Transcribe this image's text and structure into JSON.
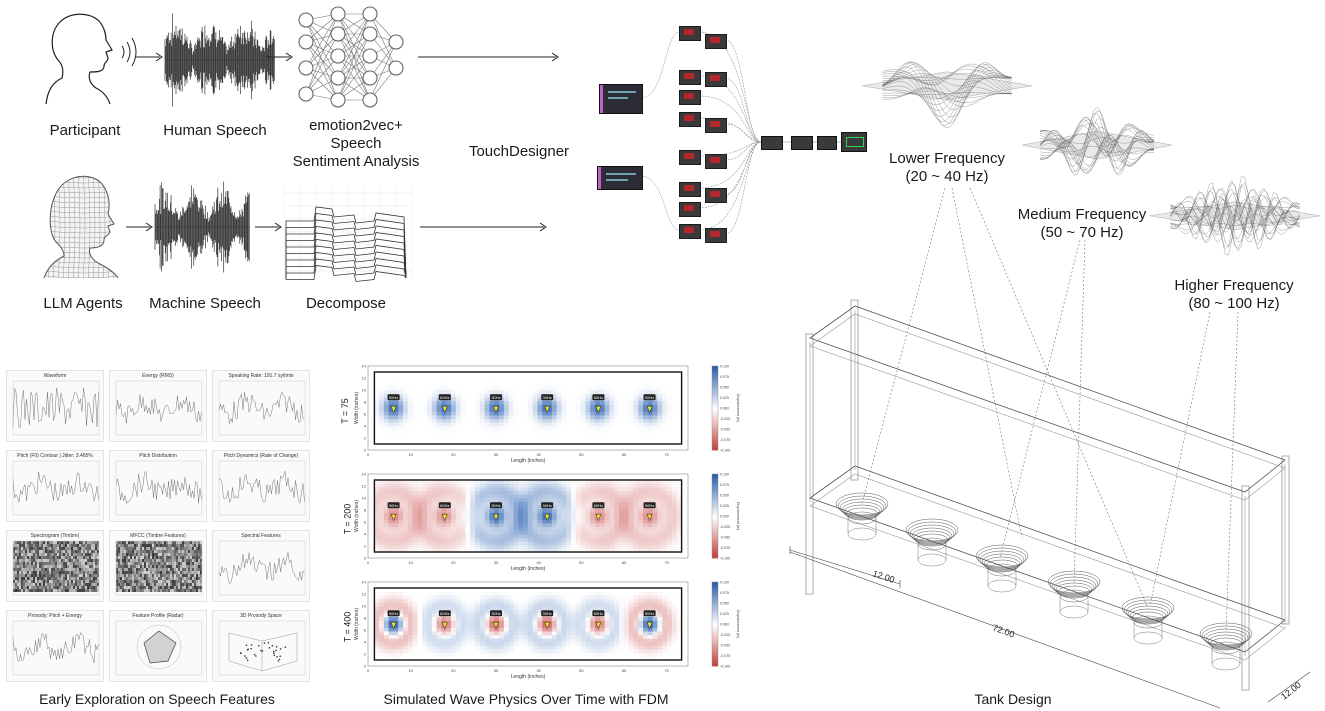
{
  "pipeline": {
    "participant": "Participant",
    "human_speech": "Human Speech",
    "emotion": "emotion2vec+\nSpeech\nSentiment Analysis",
    "emotion_l1": "emotion2vec+",
    "emotion_l2": "Speech",
    "emotion_l3": "Sentiment Analysis",
    "touchdesigner": "TouchDesigner",
    "llm_agents": "LLM Agents",
    "machine_speech": "Machine Speech",
    "decompose": "Decompose"
  },
  "frequencies": {
    "lower_l1": "Lower Frequency",
    "lower_l2": "(20 ~ 40 Hz)",
    "medium_l1": "Medium Frequency",
    "medium_l2": "(50 ~ 70 Hz)",
    "higher_l1": "Higher Frequency",
    "higher_l2": "(80 ~ 100 Hz)"
  },
  "speech_features": {
    "caption": "Early Exploration on Speech Features",
    "panels": [
      "Waveform",
      "Energy (RMS)",
      "Speaking Rate: 191.7 syl/min",
      "Pitch (F0) Contour | Jitter: 3.465%",
      "Pitch Distribution",
      "Pitch Dynamics (Rate of Change)",
      "Spectrogram (Timbre)",
      "MFCC (Timbre Features)",
      "Spectral Features",
      "Prosody: Pitch + Energy",
      "Feature Profile (Radar)",
      "3D Prosody Space"
    ]
  },
  "simulation": {
    "caption": "Simulated Wave Physics Over Time with FDM",
    "xlabel": "Length (inches)",
    "ylabel": "Width (inches)",
    "colorbar_label": "Displacement (m)",
    "frames": [
      "T = 75",
      "T = 200",
      "T = 400"
    ],
    "speakers": [
      "90Hz",
      "60Hz",
      "30Hz",
      "30Hz",
      "60Hz",
      "90Hz"
    ],
    "x_ticks": [
      "0",
      "10",
      "20",
      "30",
      "40",
      "50",
      "60",
      "70"
    ],
    "y_ticks": [
      "0",
      "2",
      "4",
      "6",
      "8",
      "10",
      "12",
      "14"
    ],
    "cbar_ticks": [
      "0.100",
      "0.075",
      "0.050",
      "0.025",
      "0.000",
      "-0.025",
      "-0.050",
      "-0.075",
      "-0.100"
    ]
  },
  "tank": {
    "caption": "Tank Design",
    "dim_width": "12.00",
    "dim_length": "72.00",
    "dim_depth": "12.00"
  },
  "colors": {
    "line": "#2b2b2b",
    "blue": "#2f6db0",
    "red": "#c43a31"
  }
}
